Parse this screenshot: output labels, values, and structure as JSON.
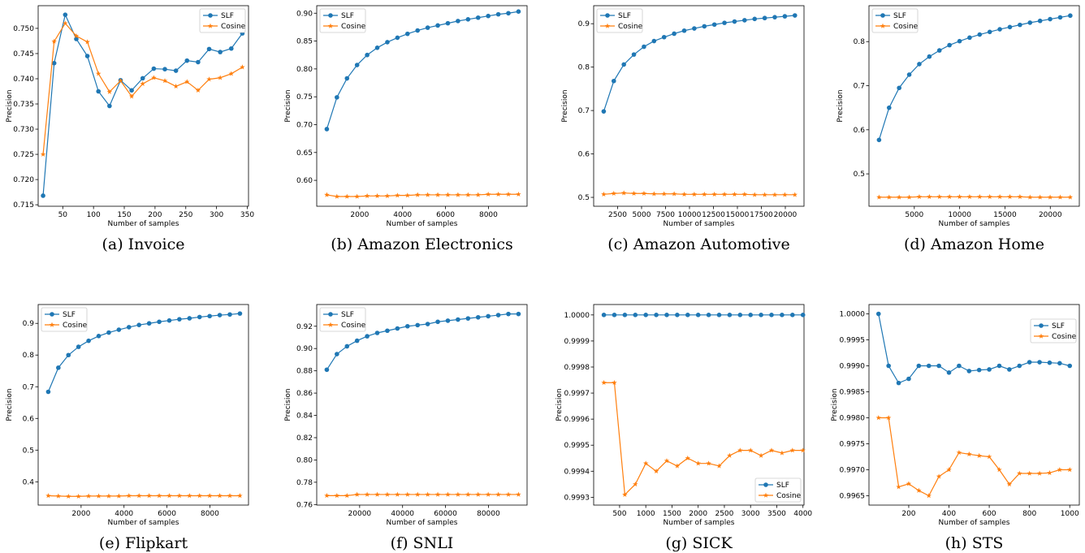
{
  "colors": {
    "slf": "#1f77b4",
    "cosine": "#ff7f0e",
    "legend_border": "#cccccc"
  },
  "chart_data": [
    {
      "type": "line",
      "caption": "(a) Invoice",
      "xlabel": "Number of samples",
      "ylabel": "Precision",
      "xlim": [
        10,
        352
      ],
      "ylim": [
        0.7147,
        0.7545
      ],
      "xticks": [
        50,
        100,
        150,
        200,
        250,
        300,
        350
      ],
      "xtick_labels": [
        "50",
        "100",
        "150",
        "200",
        "250",
        "300",
        "350"
      ],
      "yticks": [
        0.715,
        0.72,
        0.725,
        0.73,
        0.735,
        0.74,
        0.745,
        0.75
      ],
      "ytick_labels": [
        "0.715",
        "0.720",
        "0.725",
        "0.730",
        "0.735",
        "0.740",
        "0.745",
        "0.750"
      ],
      "legend_position": "upper right",
      "x": [
        18,
        36,
        54,
        72,
        90,
        108,
        126,
        144,
        162,
        180,
        198,
        216,
        234,
        252,
        270,
        288,
        306,
        324,
        342
      ],
      "series": [
        {
          "name": "SLF",
          "marker": "circle",
          "values": [
            0.7168,
            0.7431,
            0.7527,
            0.7479,
            0.7445,
            0.7375,
            0.7346,
            0.7397,
            0.7377,
            0.7401,
            0.742,
            0.7419,
            0.7416,
            0.7436,
            0.7433,
            0.7459,
            0.7453,
            0.746,
            0.749
          ]
        },
        {
          "name": "Cosine",
          "marker": "star",
          "values": [
            0.725,
            0.7474,
            0.751,
            0.7485,
            0.7473,
            0.741,
            0.7374,
            0.7396,
            0.7365,
            0.739,
            0.7402,
            0.7396,
            0.7385,
            0.7394,
            0.7377,
            0.7399,
            0.7402,
            0.741,
            0.7423
          ]
        }
      ]
    },
    {
      "type": "line",
      "caption": "(b) Amazon Electronics",
      "xlabel": "Number of samples",
      "ylabel": "Precision",
      "xlim": [
        0,
        9800
      ],
      "ylim": [
        0.5535,
        0.9135
      ],
      "xticks": [
        2000,
        4000,
        6000,
        8000
      ],
      "xtick_labels": [
        "2000",
        "4000",
        "6000",
        "8000"
      ],
      "yticks": [
        0.6,
        0.65,
        0.7,
        0.75,
        0.8,
        0.85,
        0.9
      ],
      "ytick_labels": [
        "0.60",
        "0.65",
        "0.70",
        "0.75",
        "0.80",
        "0.85",
        "0.90"
      ],
      "legend_position": "upper left",
      "x": [
        470,
        940,
        1410,
        1880,
        2350,
        2820,
        3290,
        3760,
        4230,
        4700,
        5170,
        5640,
        6110,
        6580,
        7050,
        7520,
        7990,
        8460,
        8930,
        9400
      ],
      "series": [
        {
          "name": "SLF",
          "marker": "circle",
          "values": [
            0.692,
            0.749,
            0.783,
            0.807,
            0.825,
            0.838,
            0.848,
            0.856,
            0.863,
            0.869,
            0.874,
            0.878,
            0.882,
            0.886,
            0.889,
            0.892,
            0.895,
            0.898,
            0.9,
            0.903
          ]
        },
        {
          "name": "Cosine",
          "marker": "star",
          "values": [
            0.574,
            0.571,
            0.571,
            0.571,
            0.572,
            0.572,
            0.572,
            0.573,
            0.573,
            0.574,
            0.574,
            0.574,
            0.574,
            0.574,
            0.574,
            0.574,
            0.575,
            0.575,
            0.575,
            0.575
          ]
        }
      ]
    },
    {
      "type": "line",
      "caption": "(c) Amazon Automotive",
      "xlabel": "Number of samples",
      "ylabel": "Precision",
      "xlim": [
        0,
        21950
      ],
      "ylim": [
        0.4795,
        0.9415
      ],
      "xticks": [
        2500,
        5000,
        7500,
        10000,
        12500,
        15000,
        17500,
        20000
      ],
      "xtick_labels": [
        "2500",
        "5000",
        "7500",
        "10000",
        "12500",
        "15000",
        "17500",
        "20000"
      ],
      "yticks": [
        0.5,
        0.6,
        0.7,
        0.8,
        0.9
      ],
      "ytick_labels": [
        "0.5",
        "0.6",
        "0.7",
        "0.8",
        "0.9"
      ],
      "legend_position": "upper left",
      "x": [
        1050,
        2100,
        3150,
        4200,
        5250,
        6300,
        7350,
        8400,
        9450,
        10500,
        11550,
        12600,
        13650,
        14700,
        15750,
        16800,
        17850,
        18900,
        19950,
        21000
      ],
      "series": [
        {
          "name": "SLF",
          "marker": "circle",
          "values": [
            0.698,
            0.768,
            0.806,
            0.829,
            0.847,
            0.86,
            0.869,
            0.877,
            0.884,
            0.889,
            0.894,
            0.898,
            0.902,
            0.905,
            0.908,
            0.911,
            0.913,
            0.915,
            0.917,
            0.919
          ]
        },
        {
          "name": "Cosine",
          "marker": "star",
          "values": [
            0.507,
            0.509,
            0.51,
            0.509,
            0.509,
            0.508,
            0.508,
            0.508,
            0.507,
            0.507,
            0.507,
            0.507,
            0.507,
            0.507,
            0.507,
            0.506,
            0.506,
            0.506,
            0.506,
            0.506
          ]
        }
      ]
    },
    {
      "type": "line",
      "caption": "(d) Amazon Home",
      "xlabel": "Number of samples",
      "ylabel": "Precision",
      "xlim": [
        0,
        23200
      ],
      "ylim": [
        0.4265,
        0.8815
      ],
      "xticks": [
        5000,
        10000,
        15000,
        20000
      ],
      "xtick_labels": [
        "5000",
        "10000",
        "15000",
        "20000"
      ],
      "yticks": [
        0.5,
        0.6,
        0.7,
        0.8
      ],
      "ytick_labels": [
        "0.5",
        "0.6",
        "0.7",
        "0.8"
      ],
      "legend_position": "upper left",
      "x": [
        1110,
        2220,
        3330,
        4440,
        5550,
        6660,
        7770,
        8880,
        9990,
        11100,
        12210,
        13320,
        14430,
        15540,
        16650,
        17760,
        18870,
        19980,
        21090,
        22200
      ],
      "series": [
        {
          "name": "SLF",
          "marker": "circle",
          "values": [
            0.577,
            0.65,
            0.695,
            0.725,
            0.749,
            0.766,
            0.78,
            0.792,
            0.801,
            0.809,
            0.816,
            0.822,
            0.828,
            0.833,
            0.838,
            0.843,
            0.847,
            0.851,
            0.855,
            0.859
          ]
        },
        {
          "name": "Cosine",
          "marker": "star",
          "values": [
            0.447,
            0.447,
            0.447,
            0.447,
            0.448,
            0.448,
            0.448,
            0.448,
            0.448,
            0.448,
            0.448,
            0.448,
            0.448,
            0.448,
            0.448,
            0.447,
            0.447,
            0.447,
            0.447,
            0.447
          ]
        }
      ]
    },
    {
      "type": "line",
      "caption": "(e) Flipkart",
      "xlabel": "Number of samples",
      "ylabel": "Precision",
      "xlim": [
        0,
        9800
      ],
      "ylim": [
        0.3265,
        0.9595
      ],
      "xticks": [
        2000,
        4000,
        6000,
        8000
      ],
      "xtick_labels": [
        "2000",
        "4000",
        "6000",
        "8000"
      ],
      "yticks": [
        0.4,
        0.5,
        0.6,
        0.7,
        0.8,
        0.9
      ],
      "ytick_labels": [
        "0.4",
        "0.5",
        "0.6",
        "0.7",
        "0.8",
        "0.9"
      ],
      "legend_position": "upper left",
      "x": [
        470,
        940,
        1410,
        1880,
        2350,
        2820,
        3290,
        3760,
        4230,
        4700,
        5170,
        5640,
        6110,
        6580,
        7050,
        7520,
        7990,
        8460,
        8930,
        9400
      ],
      "series": [
        {
          "name": "SLF",
          "marker": "circle",
          "values": [
            0.684,
            0.76,
            0.8,
            0.826,
            0.845,
            0.86,
            0.871,
            0.88,
            0.888,
            0.895,
            0.9,
            0.905,
            0.909,
            0.913,
            0.916,
            0.92,
            0.923,
            0.926,
            0.928,
            0.931
          ]
        },
        {
          "name": "Cosine",
          "marker": "star",
          "values": [
            0.356,
            0.355,
            0.354,
            0.354,
            0.355,
            0.355,
            0.355,
            0.355,
            0.356,
            0.356,
            0.356,
            0.356,
            0.356,
            0.356,
            0.356,
            0.356,
            0.356,
            0.356,
            0.356,
            0.356
          ]
        }
      ]
    },
    {
      "type": "line",
      "caption": "(f) SNLI",
      "xlabel": "Number of samples",
      "ylabel": "Precision",
      "xlim": [
        0,
        98000
      ],
      "ylim": [
        0.7595,
        0.9395
      ],
      "xticks": [
        20000,
        40000,
        60000,
        80000
      ],
      "xtick_labels": [
        "20000",
        "40000",
        "60000",
        "80000"
      ],
      "yticks": [
        0.76,
        0.78,
        0.8,
        0.82,
        0.84,
        0.86,
        0.88,
        0.9,
        0.92
      ],
      "ytick_labels": [
        "0.76",
        "0.78",
        "0.80",
        "0.82",
        "0.84",
        "0.86",
        "0.88",
        "0.90",
        "0.92"
      ],
      "legend_position": "upper left",
      "x": [
        4700,
        9400,
        14100,
        18800,
        23500,
        28200,
        32900,
        37600,
        42300,
        47000,
        51700,
        56400,
        61100,
        65800,
        70500,
        75200,
        79900,
        84600,
        89300,
        94000
      ],
      "series": [
        {
          "name": "SLF",
          "marker": "circle",
          "values": [
            0.881,
            0.895,
            0.902,
            0.907,
            0.911,
            0.914,
            0.916,
            0.918,
            0.92,
            0.921,
            0.922,
            0.924,
            0.925,
            0.926,
            0.927,
            0.928,
            0.929,
            0.93,
            0.931,
            0.931
          ]
        },
        {
          "name": "Cosine",
          "marker": "star",
          "values": [
            0.768,
            0.768,
            0.768,
            0.769,
            0.769,
            0.769,
            0.769,
            0.769,
            0.769,
            0.769,
            0.769,
            0.769,
            0.769,
            0.769,
            0.769,
            0.769,
            0.769,
            0.769,
            0.769,
            0.769
          ]
        }
      ]
    },
    {
      "type": "line",
      "caption": "(g) SICK",
      "xlabel": "Number of samples",
      "ylabel": "Precision",
      "xlim": [
        5,
        4020
      ],
      "ylim": [
        0.99927,
        1.00004
      ],
      "xticks": [
        500,
        1000,
        1500,
        2000,
        2500,
        3000,
        3500,
        4000
      ],
      "xtick_labels": [
        "500",
        "1000",
        "1500",
        "2000",
        "2500",
        "3000",
        "3500",
        "4000"
      ],
      "yticks": [
        0.9993,
        0.9994,
        0.9995,
        0.9996,
        0.9997,
        0.9998,
        0.9999,
        1.0
      ],
      "ytick_labels": [
        "0.9993",
        "0.9994",
        "0.9995",
        "0.9996",
        "0.9997",
        "0.9998",
        "0.9999",
        "1.0000"
      ],
      "legend_position": "lower right",
      "x": [
        200,
        400,
        600,
        800,
        1000,
        1200,
        1400,
        1600,
        1800,
        2000,
        2200,
        2400,
        2600,
        2800,
        3000,
        3200,
        3400,
        3600,
        3800,
        4000
      ],
      "series": [
        {
          "name": "SLF",
          "marker": "circle",
          "values": [
            1.0,
            1.0,
            1.0,
            1.0,
            1.0,
            1.0,
            1.0,
            1.0,
            1.0,
            1.0,
            1.0,
            1.0,
            1.0,
            1.0,
            1.0,
            1.0,
            1.0,
            1.0,
            1.0,
            1.0
          ]
        },
        {
          "name": "Cosine",
          "marker": "star",
          "values": [
            0.99974,
            0.99974,
            0.99931,
            0.99935,
            0.99943,
            0.9994,
            0.99944,
            0.99942,
            0.99945,
            0.99943,
            0.99943,
            0.99942,
            0.99946,
            0.99948,
            0.99948,
            0.99946,
            0.99948,
            0.99947,
            0.99948,
            0.99948
          ]
        }
      ]
    },
    {
      "type": "line",
      "caption": "(h) STS",
      "xlabel": "Number of samples",
      "ylabel": "Precision",
      "xlim": [
        2.5,
        1047.5
      ],
      "ylim": [
        0.99632,
        1.00018
      ],
      "xticks": [
        200,
        400,
        600,
        800,
        1000
      ],
      "xtick_labels": [
        "200",
        "400",
        "600",
        "800",
        "1000"
      ],
      "yticks": [
        0.9965,
        0.997,
        0.9975,
        0.998,
        0.9985,
        0.999,
        0.9995,
        1.0
      ],
      "ytick_labels": [
        "0.9965",
        "0.9970",
        "0.9975",
        "0.9980",
        "0.9985",
        "0.9990",
        "0.9995",
        "1.0000"
      ],
      "legend_position": "upper right",
      "x": [
        50,
        100,
        150,
        200,
        250,
        300,
        350,
        400,
        450,
        500,
        550,
        600,
        650,
        700,
        750,
        800,
        850,
        900,
        950,
        1000
      ],
      "series": [
        {
          "name": "SLF",
          "marker": "circle",
          "values": [
            1.0,
            0.999,
            0.99867,
            0.99875,
            0.999,
            0.999,
            0.999,
            0.99887,
            0.999,
            0.9989,
            0.99892,
            0.99893,
            0.999,
            0.99893,
            0.999,
            0.99907,
            0.99907,
            0.99906,
            0.99905,
            0.999
          ]
        },
        {
          "name": "Cosine",
          "marker": "star",
          "values": [
            0.998,
            0.998,
            0.99667,
            0.99673,
            0.9966,
            0.9965,
            0.99687,
            0.997,
            0.99733,
            0.9973,
            0.99727,
            0.99725,
            0.997,
            0.99672,
            0.99693,
            0.99693,
            0.99693,
            0.99694,
            0.997,
            0.997
          ]
        }
      ]
    }
  ]
}
